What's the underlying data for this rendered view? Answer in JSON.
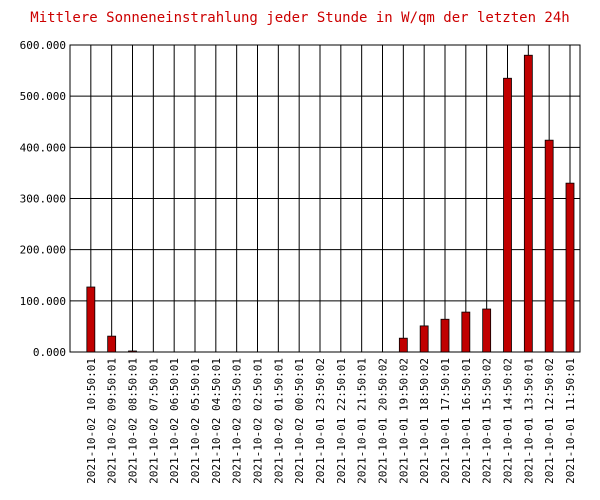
{
  "chart_data": {
    "type": "bar",
    "title": "Mittlere Sonneneinstrahlung jeder Stunde in W/qm der letzten 24h",
    "categories": [
      "2021-10-02 10:50:01",
      "2021-10-02 09:50:01",
      "2021-10-02 08:50:01",
      "2021-10-02 07:50:01",
      "2021-10-02 06:50:01",
      "2021-10-02 05:50:01",
      "2021-10-02 04:50:01",
      "2021-10-02 03:50:01",
      "2021-10-02 02:50:01",
      "2021-10-02 01:50:01",
      "2021-10-02 00:50:01",
      "2021-10-01 23:50:02",
      "2021-10-01 22:50:01",
      "2021-10-01 21:50:01",
      "2021-10-01 20:50:02",
      "2021-10-01 19:50:02",
      "2021-10-01 18:50:02",
      "2021-10-01 17:50:01",
      "2021-10-01 16:50:01",
      "2021-10-01 15:50:02",
      "2021-10-01 14:50:02",
      "2021-10-01 13:50:01",
      "2021-10-01 12:50:02",
      "2021-10-01 11:50:01"
    ],
    "values": [
      127,
      31,
      2,
      0,
      0,
      0,
      0,
      0,
      0,
      0,
      0,
      0,
      0,
      0,
      0,
      27,
      51,
      64,
      78,
      84,
      535,
      580,
      414,
      330
    ],
    "color": "#c00000",
    "ylim": [
      0,
      600
    ],
    "yticks": [
      {
        "value": 0,
        "label": "0.000"
      },
      {
        "value": 100,
        "label": "100.000"
      },
      {
        "value": 200,
        "label": "200.000"
      },
      {
        "value": 300,
        "label": "300.000"
      },
      {
        "value": 400,
        "label": "400.000"
      },
      {
        "value": 500,
        "label": "500.000"
      },
      {
        "value": 600,
        "label": "600.000"
      }
    ],
    "grid": true
  }
}
